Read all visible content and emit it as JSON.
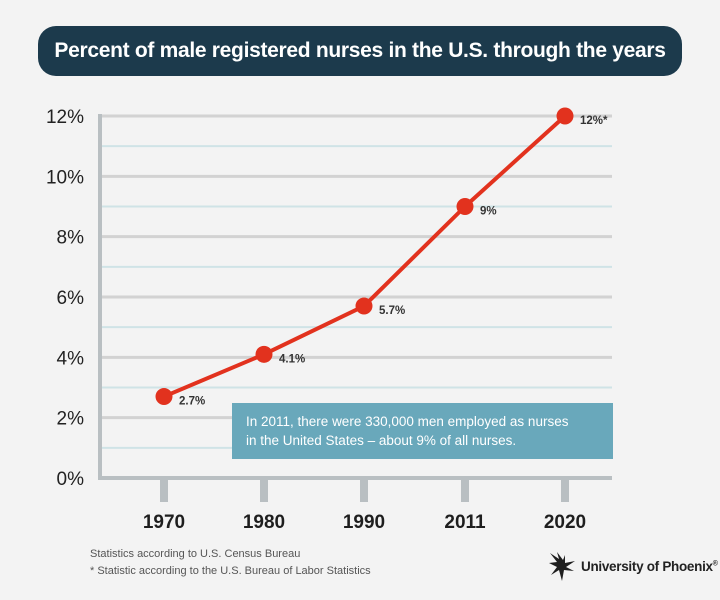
{
  "chart_data": {
    "type": "line",
    "title": "Percent of male registered nurses in the U.S. through the years",
    "xlabel": "",
    "ylabel": "",
    "categories": [
      "1970",
      "1980",
      "1990",
      "2011",
      "2020"
    ],
    "series": [
      {
        "name": "Percent of male registered nurses",
        "values": [
          2.7,
          4.1,
          5.7,
          9,
          12
        ],
        "labels": [
          "2.7%",
          "4.1%",
          "5.7%",
          "9%",
          "12%*"
        ],
        "color": "#e2321e"
      }
    ],
    "ylim": [
      0,
      12
    ],
    "yticks": [
      0,
      2,
      4,
      6,
      8,
      10,
      12
    ],
    "ytick_labels": [
      "0%",
      "2%",
      "4%",
      "6%",
      "8%",
      "10%",
      "12%"
    ],
    "minor_gridlines": [
      1,
      3,
      5,
      7,
      9,
      11
    ],
    "grid": true,
    "legend": "none",
    "annotation": "In 2011, there were 330,000 men employed as nurses in the United States – about 9% of all nurses."
  },
  "callout": {
    "line1": "In 2011, there were 330,000 men employed as nurses",
    "line2": "in the United States – about 9% of all nurses."
  },
  "footnotes": {
    "line1": "Statistics according to U.S. Census Bureau",
    "line2": "* Statistic according to the U.S. Bureau of Labor Statistics"
  },
  "logo": {
    "name": "University of Phoenix",
    "mark": "®",
    "icon": "phoenix-bird-icon"
  },
  "colors": {
    "title_bg": "#1c3a4c",
    "line": "#e2321e",
    "callout_bg": "#69a8bb",
    "major_grid": "#d2d2d2",
    "minor_grid": "#cfe3e6",
    "axis": "#b9bfc2"
  }
}
